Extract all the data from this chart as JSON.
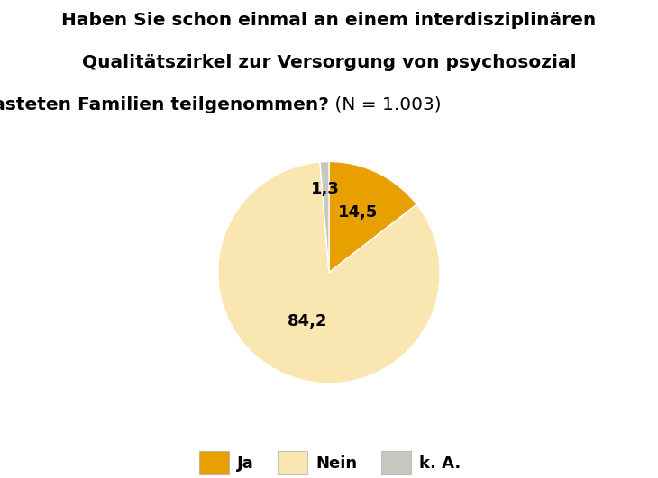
{
  "title_line1": "Haben Sie schon einmal an einem interdisziplinären",
  "title_line2": "Qualitätszirkel zur Versorgung von psychosozial",
  "title_line3_bold": "belasteten Familien teilgenommen?",
  "title_line3_normal": " (N = 1.003)",
  "values": [
    14.5,
    84.2,
    1.3
  ],
  "slice_labels": [
    "14,5",
    "84,2",
    "1,3"
  ],
  "colors": [
    "#E8A000",
    "#FAE6B0",
    "#C8C8C0"
  ],
  "legend_labels": [
    "Ja",
    "Nein",
    "k. A."
  ],
  "background_color": "#FFFFFF",
  "startangle": 90,
  "label_fontsize": 13,
  "title_fontsize": 14.5,
  "legend_fontsize": 13
}
